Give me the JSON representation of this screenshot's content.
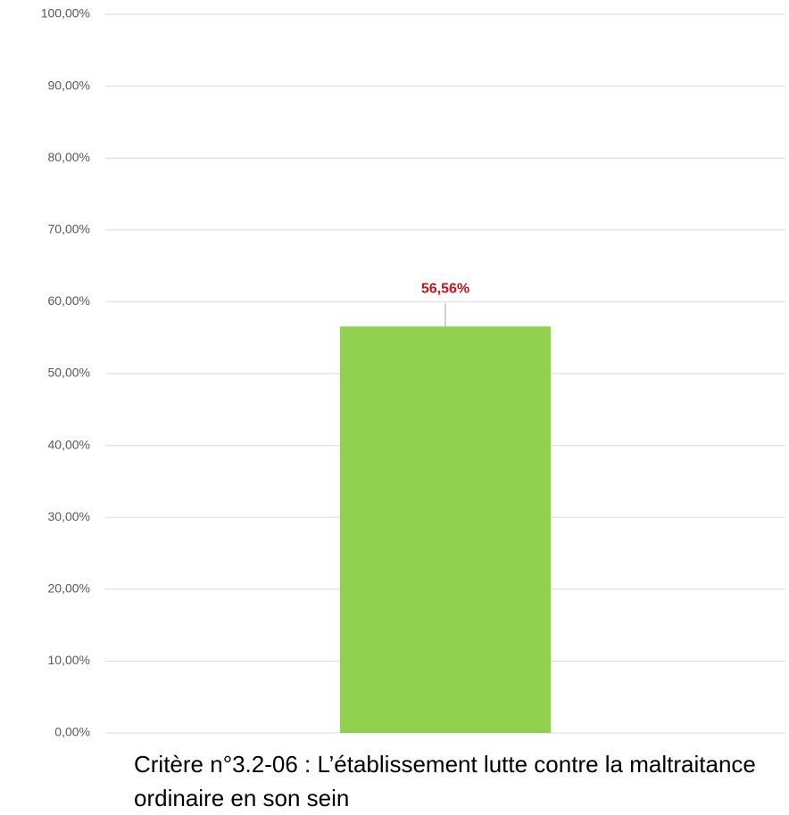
{
  "chart_data": {
    "type": "bar",
    "categories": [
      "Critère n°3.2-06 : L’établissement lutte contre la maltraitance ordinaire en son sein"
    ],
    "values": [
      56.56
    ],
    "value_labels": [
      "56,56%"
    ],
    "color": "#92d050",
    "value_label_color": "#c0161e",
    "ylim": [
      0,
      100
    ],
    "yticks": [
      {
        "value": 0,
        "label": "0,00%"
      },
      {
        "value": 10,
        "label": "10,00%"
      },
      {
        "value": 20,
        "label": "20,00%"
      },
      {
        "value": 30,
        "label": "30,00%"
      },
      {
        "value": 40,
        "label": "40,00%"
      },
      {
        "value": 50,
        "label": "50,00%"
      },
      {
        "value": 60,
        "label": "60,00%"
      },
      {
        "value": 70,
        "label": "70,00%"
      },
      {
        "value": 80,
        "label": "80,00%"
      },
      {
        "value": 90,
        "label": "90,00%"
      },
      {
        "value": 100,
        "label": "100,00%"
      }
    ],
    "grid": true
  }
}
